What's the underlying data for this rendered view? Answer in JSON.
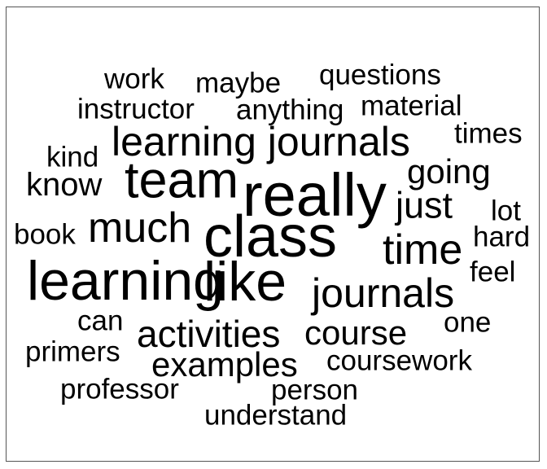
{
  "cloud": {
    "words": {
      "work": "work",
      "maybe": "maybe",
      "questions": "questions",
      "instructor": "instructor",
      "anything": "anything",
      "material": "material",
      "learning_journals": "learning journals",
      "times": "times",
      "kind": "kind",
      "team": "team",
      "going": "going",
      "know": "know",
      "really": "really",
      "just": "just",
      "lot": "lot",
      "book": "book",
      "much": "much",
      "class": "class",
      "time": "time",
      "hard": "hard",
      "learning": "learning",
      "like": "like",
      "feel": "feel",
      "journals": "journals",
      "can": "can",
      "one": "one",
      "activities": "activities",
      "course": "course",
      "primers": "primers",
      "examples": "examples",
      "coursework": "coursework",
      "professor": "professor",
      "person": "person",
      "understand": "understand"
    },
    "color": "#000000"
  }
}
